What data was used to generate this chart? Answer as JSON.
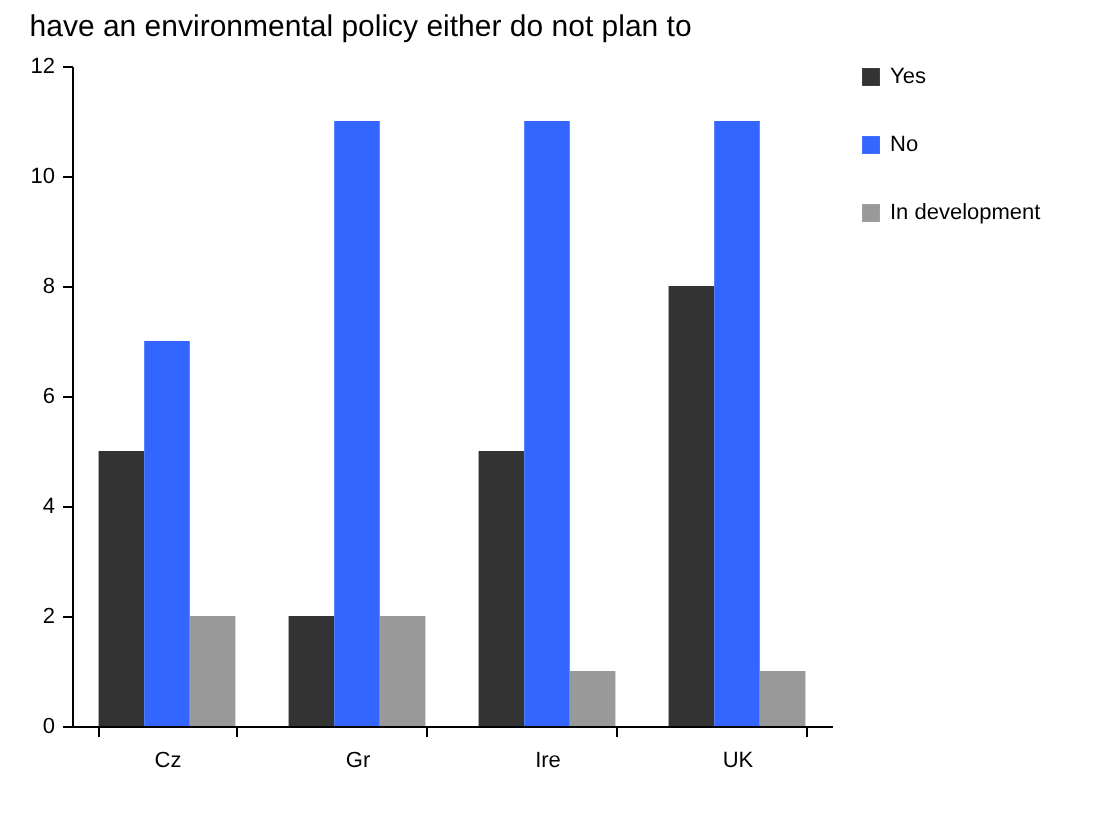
{
  "chart_data": {
    "type": "bar",
    "title": "have an environmental policy either do not plan to",
    "categories": [
      "Cz",
      "Gr",
      "Ire",
      "UK"
    ],
    "series": [
      {
        "name": "Yes",
        "color": "#333333",
        "values": [
          5,
          2,
          5,
          8
        ]
      },
      {
        "name": "No",
        "color": "#3366ff",
        "values": [
          7,
          11,
          11,
          11
        ]
      },
      {
        "name": "In development",
        "color": "#999999",
        "values": [
          2,
          2,
          1,
          1
        ]
      }
    ],
    "ylim": [
      0,
      12
    ],
    "yticks": [
      0,
      2,
      4,
      6,
      8,
      10,
      12
    ],
    "grid": false,
    "legend": "right"
  }
}
